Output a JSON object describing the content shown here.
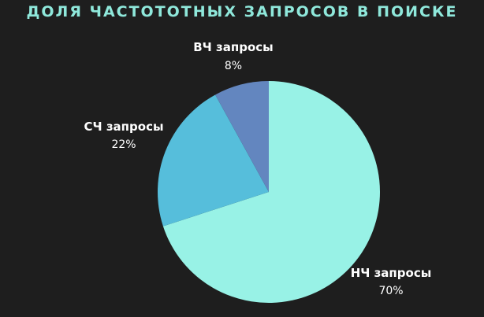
{
  "chart_data": {
    "type": "pie",
    "title": "ДОЛЯ ЧАСТОТОТНЫХ ЗАПРОСОВ В ПОИСКЕ",
    "slices": [
      {
        "label": "НЧ запросы",
        "value": 70,
        "value_label": "70%",
        "color": "#98f2e6"
      },
      {
        "label": "СЧ запросы",
        "value": 22,
        "value_label": "22%",
        "color": "#56bedb"
      },
      {
        "label": "ВЧ запросы",
        "value": 8,
        "value_label": "8%",
        "color": "#6386bf"
      }
    ],
    "start": "12 o'clock",
    "direction": "clockwise",
    "legend": "none"
  }
}
